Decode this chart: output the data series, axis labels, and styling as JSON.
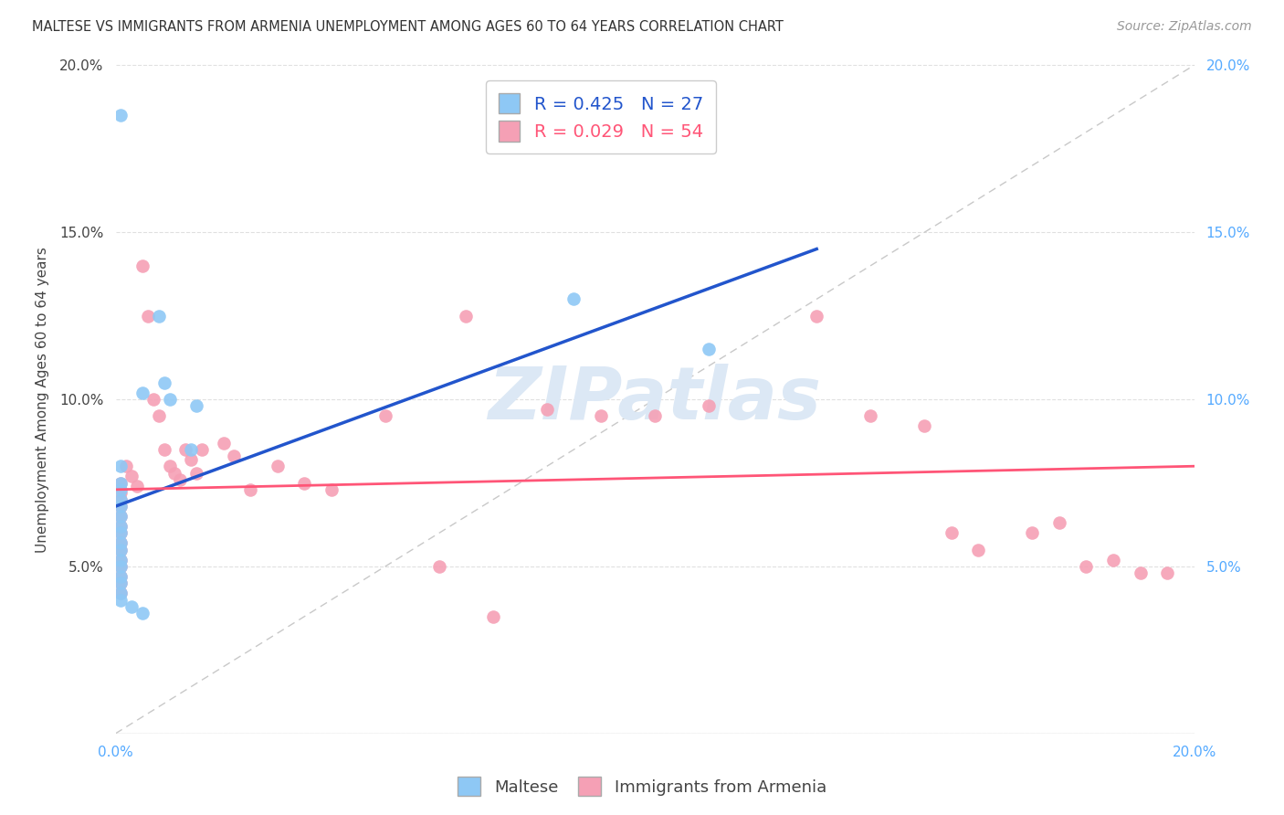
{
  "title": "MALTESE VS IMMIGRANTS FROM ARMENIA UNEMPLOYMENT AMONG AGES 60 TO 64 YEARS CORRELATION CHART",
  "source": "Source: ZipAtlas.com",
  "ylabel": "Unemployment Among Ages 60 to 64 years",
  "xlim": [
    0.0,
    0.2
  ],
  "ylim": [
    0.0,
    0.2
  ],
  "background_color": "#ffffff",
  "maltese_color": "#8EC8F5",
  "armenia_color": "#F5A0B5",
  "maltese_line_color": "#2255CC",
  "armenia_line_color": "#FF5577",
  "diagonal_color": "#BBBBBB",
  "grid_color": "#E0E0E0",
  "maltese_R": 0.425,
  "maltese_N": 27,
  "armenia_R": 0.029,
  "armenia_N": 54,
  "left_tick_color": "#444444",
  "right_tick_color": "#55AAFF",
  "xtick_color": "#55AAFF",
  "watermark_color": "#DCE8F5",
  "maltese_line_x0": 0.0,
  "maltese_line_y0": 0.068,
  "maltese_line_x1": 0.13,
  "maltese_line_y1": 0.145,
  "armenia_line_x0": 0.0,
  "armenia_line_y0": 0.073,
  "armenia_line_x1": 0.2,
  "armenia_line_y1": 0.08,
  "maltese_points": [
    [
      0.001,
      0.185
    ],
    [
      0.008,
      0.125
    ],
    [
      0.009,
      0.105
    ],
    [
      0.01,
      0.1
    ],
    [
      0.005,
      0.102
    ],
    [
      0.015,
      0.098
    ],
    [
      0.014,
      0.085
    ],
    [
      0.001,
      0.08
    ],
    [
      0.001,
      0.075
    ],
    [
      0.001,
      0.073
    ],
    [
      0.001,
      0.07
    ],
    [
      0.001,
      0.068
    ],
    [
      0.001,
      0.065
    ],
    [
      0.001,
      0.062
    ],
    [
      0.001,
      0.06
    ],
    [
      0.001,
      0.057
    ],
    [
      0.001,
      0.055
    ],
    [
      0.001,
      0.052
    ],
    [
      0.001,
      0.05
    ],
    [
      0.001,
      0.047
    ],
    [
      0.001,
      0.045
    ],
    [
      0.001,
      0.042
    ],
    [
      0.001,
      0.04
    ],
    [
      0.085,
      0.13
    ],
    [
      0.11,
      0.115
    ],
    [
      0.003,
      0.038
    ],
    [
      0.005,
      0.036
    ]
  ],
  "armenia_points": [
    [
      0.001,
      0.075
    ],
    [
      0.001,
      0.072
    ],
    [
      0.001,
      0.07
    ],
    [
      0.001,
      0.068
    ],
    [
      0.001,
      0.065
    ],
    [
      0.001,
      0.062
    ],
    [
      0.001,
      0.06
    ],
    [
      0.001,
      0.057
    ],
    [
      0.001,
      0.055
    ],
    [
      0.001,
      0.052
    ],
    [
      0.001,
      0.05
    ],
    [
      0.001,
      0.047
    ],
    [
      0.001,
      0.045
    ],
    [
      0.001,
      0.042
    ],
    [
      0.002,
      0.08
    ],
    [
      0.003,
      0.077
    ],
    [
      0.004,
      0.074
    ],
    [
      0.005,
      0.14
    ],
    [
      0.006,
      0.125
    ],
    [
      0.007,
      0.1
    ],
    [
      0.008,
      0.095
    ],
    [
      0.009,
      0.085
    ],
    [
      0.01,
      0.08
    ],
    [
      0.011,
      0.078
    ],
    [
      0.012,
      0.076
    ],
    [
      0.013,
      0.085
    ],
    [
      0.014,
      0.082
    ],
    [
      0.015,
      0.078
    ],
    [
      0.016,
      0.085
    ],
    [
      0.02,
      0.087
    ],
    [
      0.022,
      0.083
    ],
    [
      0.025,
      0.073
    ],
    [
      0.03,
      0.08
    ],
    [
      0.035,
      0.075
    ],
    [
      0.04,
      0.073
    ],
    [
      0.05,
      0.095
    ],
    [
      0.06,
      0.05
    ],
    [
      0.065,
      0.125
    ],
    [
      0.07,
      0.035
    ],
    [
      0.08,
      0.097
    ],
    [
      0.09,
      0.095
    ],
    [
      0.1,
      0.095
    ],
    [
      0.11,
      0.098
    ],
    [
      0.13,
      0.125
    ],
    [
      0.14,
      0.095
    ],
    [
      0.15,
      0.092
    ],
    [
      0.155,
      0.06
    ],
    [
      0.16,
      0.055
    ],
    [
      0.17,
      0.06
    ],
    [
      0.175,
      0.063
    ],
    [
      0.18,
      0.05
    ],
    [
      0.185,
      0.052
    ],
    [
      0.19,
      0.048
    ],
    [
      0.195,
      0.048
    ]
  ]
}
